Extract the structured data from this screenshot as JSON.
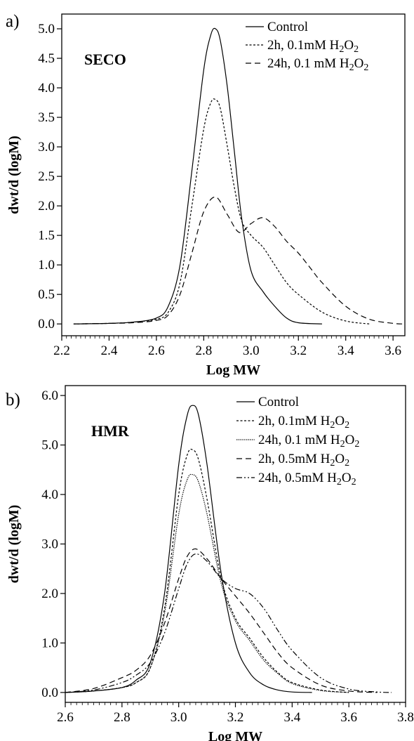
{
  "chart_data": [
    {
      "type": "line",
      "panel_label": "a)",
      "inset_label": "SECO",
      "xlabel": "Log MW",
      "ylabel": "dwt/d (logM)",
      "xlim": [
        2.2,
        3.65
      ],
      "ylim": [
        -0.2,
        5.25
      ],
      "xticks": [
        "2.2",
        "2.4",
        "2.6",
        "2.8",
        "3.0",
        "3.2",
        "3.4",
        "3.6"
      ],
      "yticks": [
        "0.0",
        "0.5",
        "1.0",
        "1.5",
        "2.0",
        "2.5",
        "3.0",
        "3.5",
        "4.0",
        "4.5",
        "5.0"
      ],
      "legend_position": "top-right",
      "series": [
        {
          "name": "Control",
          "dash": "solid",
          "x": [
            2.25,
            2.4,
            2.5,
            2.6,
            2.65,
            2.7,
            2.75,
            2.8,
            2.83,
            2.85,
            2.87,
            2.9,
            2.93,
            2.96,
            3.0,
            3.05,
            3.1,
            3.15,
            3.2,
            3.3
          ],
          "y": [
            0.0,
            0.01,
            0.03,
            0.1,
            0.3,
            1.0,
            2.6,
            4.3,
            4.9,
            5.0,
            4.8,
            4.0,
            2.9,
            1.8,
            0.9,
            0.55,
            0.3,
            0.1,
            0.02,
            0.0
          ]
        },
        {
          "name": "2h, 0.1mM H₂O₂",
          "dash": "dotted",
          "x": [
            2.25,
            2.4,
            2.5,
            2.6,
            2.65,
            2.7,
            2.75,
            2.8,
            2.83,
            2.85,
            2.87,
            2.9,
            2.93,
            2.96,
            3.0,
            3.05,
            3.1,
            3.15,
            3.2,
            3.3,
            3.4,
            3.5
          ],
          "y": [
            0.0,
            0.01,
            0.03,
            0.08,
            0.2,
            0.7,
            2.0,
            3.3,
            3.75,
            3.8,
            3.65,
            3.0,
            2.3,
            1.75,
            1.5,
            1.3,
            1.0,
            0.7,
            0.5,
            0.2,
            0.05,
            0.0
          ]
        },
        {
          "name": "24h, 0.1 mM H₂O₂",
          "dash": "dashed",
          "x": [
            2.25,
            2.4,
            2.5,
            2.6,
            2.65,
            2.7,
            2.75,
            2.8,
            2.85,
            2.9,
            2.95,
            3.0,
            3.05,
            3.1,
            3.15,
            3.2,
            3.25,
            3.3,
            3.4,
            3.5,
            3.6,
            3.65
          ],
          "y": [
            0.0,
            0.01,
            0.02,
            0.06,
            0.15,
            0.5,
            1.2,
            1.9,
            2.15,
            1.85,
            1.55,
            1.7,
            1.8,
            1.65,
            1.4,
            1.2,
            0.95,
            0.7,
            0.3,
            0.08,
            0.01,
            0.0
          ]
        }
      ]
    },
    {
      "type": "line",
      "panel_label": "b)",
      "inset_label": "HMR",
      "xlabel": "Log MW",
      "ylabel": "dwt/d (logM)",
      "xlim": [
        2.6,
        3.8
      ],
      "ylim": [
        -0.2,
        6.2
      ],
      "xticks": [
        "2.6",
        "2.8",
        "3.0",
        "3.2",
        "3.4",
        "3.6",
        "3.8"
      ],
      "yticks": [
        "0.0",
        "1.0",
        "2.0",
        "3.0",
        "4.0",
        "5.0",
        "6.0"
      ],
      "legend_position": "top-right",
      "series": [
        {
          "name": "Control",
          "dash": "solid",
          "x": [
            2.6,
            2.7,
            2.8,
            2.85,
            2.9,
            2.95,
            3.0,
            3.03,
            3.05,
            3.07,
            3.1,
            3.15,
            3.2,
            3.25,
            3.3,
            3.35,
            3.4,
            3.47
          ],
          "y": [
            0.0,
            0.03,
            0.1,
            0.25,
            0.6,
            2.0,
            4.6,
            5.6,
            5.8,
            5.6,
            4.6,
            2.4,
            1.0,
            0.4,
            0.15,
            0.05,
            0.01,
            0.0
          ]
        },
        {
          "name": "2h, 0.1mM H₂O₂",
          "dash": "dotted",
          "x": [
            2.6,
            2.7,
            2.8,
            2.85,
            2.9,
            2.95,
            3.0,
            3.03,
            3.05,
            3.07,
            3.1,
            3.15,
            3.2,
            3.25,
            3.3,
            3.35,
            3.4,
            3.5,
            3.6
          ],
          "y": [
            0.0,
            0.03,
            0.1,
            0.2,
            0.5,
            1.7,
            4.0,
            4.8,
            4.9,
            4.7,
            3.9,
            2.3,
            1.5,
            1.1,
            0.7,
            0.4,
            0.2,
            0.05,
            0.0
          ]
        },
        {
          "name": "24h, 0.1 mM H₂O₂",
          "dash": "finedot",
          "x": [
            2.6,
            2.7,
            2.8,
            2.85,
            2.9,
            2.95,
            3.0,
            3.03,
            3.05,
            3.07,
            3.1,
            3.15,
            3.2,
            3.25,
            3.3,
            3.35,
            3.4,
            3.5,
            3.6
          ],
          "y": [
            0.0,
            0.03,
            0.1,
            0.2,
            0.5,
            1.6,
            3.6,
            4.3,
            4.4,
            4.25,
            3.6,
            2.2,
            1.45,
            1.05,
            0.65,
            0.38,
            0.18,
            0.04,
            0.0
          ]
        },
        {
          "name": "2h, 0.5mM H₂O₂",
          "dash": "dashed",
          "x": [
            2.6,
            2.7,
            2.8,
            2.85,
            2.9,
            2.95,
            3.0,
            3.03,
            3.06,
            3.1,
            3.15,
            3.2,
            3.25,
            3.3,
            3.35,
            3.4,
            3.5,
            3.6,
            3.7
          ],
          "y": [
            0.0,
            0.08,
            0.3,
            0.45,
            0.75,
            1.4,
            2.3,
            2.75,
            2.9,
            2.7,
            2.3,
            1.95,
            1.6,
            1.2,
            0.8,
            0.5,
            0.15,
            0.03,
            0.0
          ]
        },
        {
          "name": "24h, 0.5mM H₂O₂",
          "dash": "dashdotdot",
          "x": [
            2.6,
            2.7,
            2.8,
            2.85,
            2.9,
            2.95,
            3.0,
            3.03,
            3.06,
            3.1,
            3.15,
            3.2,
            3.25,
            3.3,
            3.35,
            3.4,
            3.5,
            3.6,
            3.7,
            3.75
          ],
          "y": [
            0.0,
            0.05,
            0.2,
            0.35,
            0.6,
            1.2,
            2.1,
            2.6,
            2.8,
            2.65,
            2.3,
            2.1,
            2.0,
            1.7,
            1.25,
            0.85,
            0.3,
            0.07,
            0.01,
            0.0
          ]
        }
      ]
    }
  ]
}
